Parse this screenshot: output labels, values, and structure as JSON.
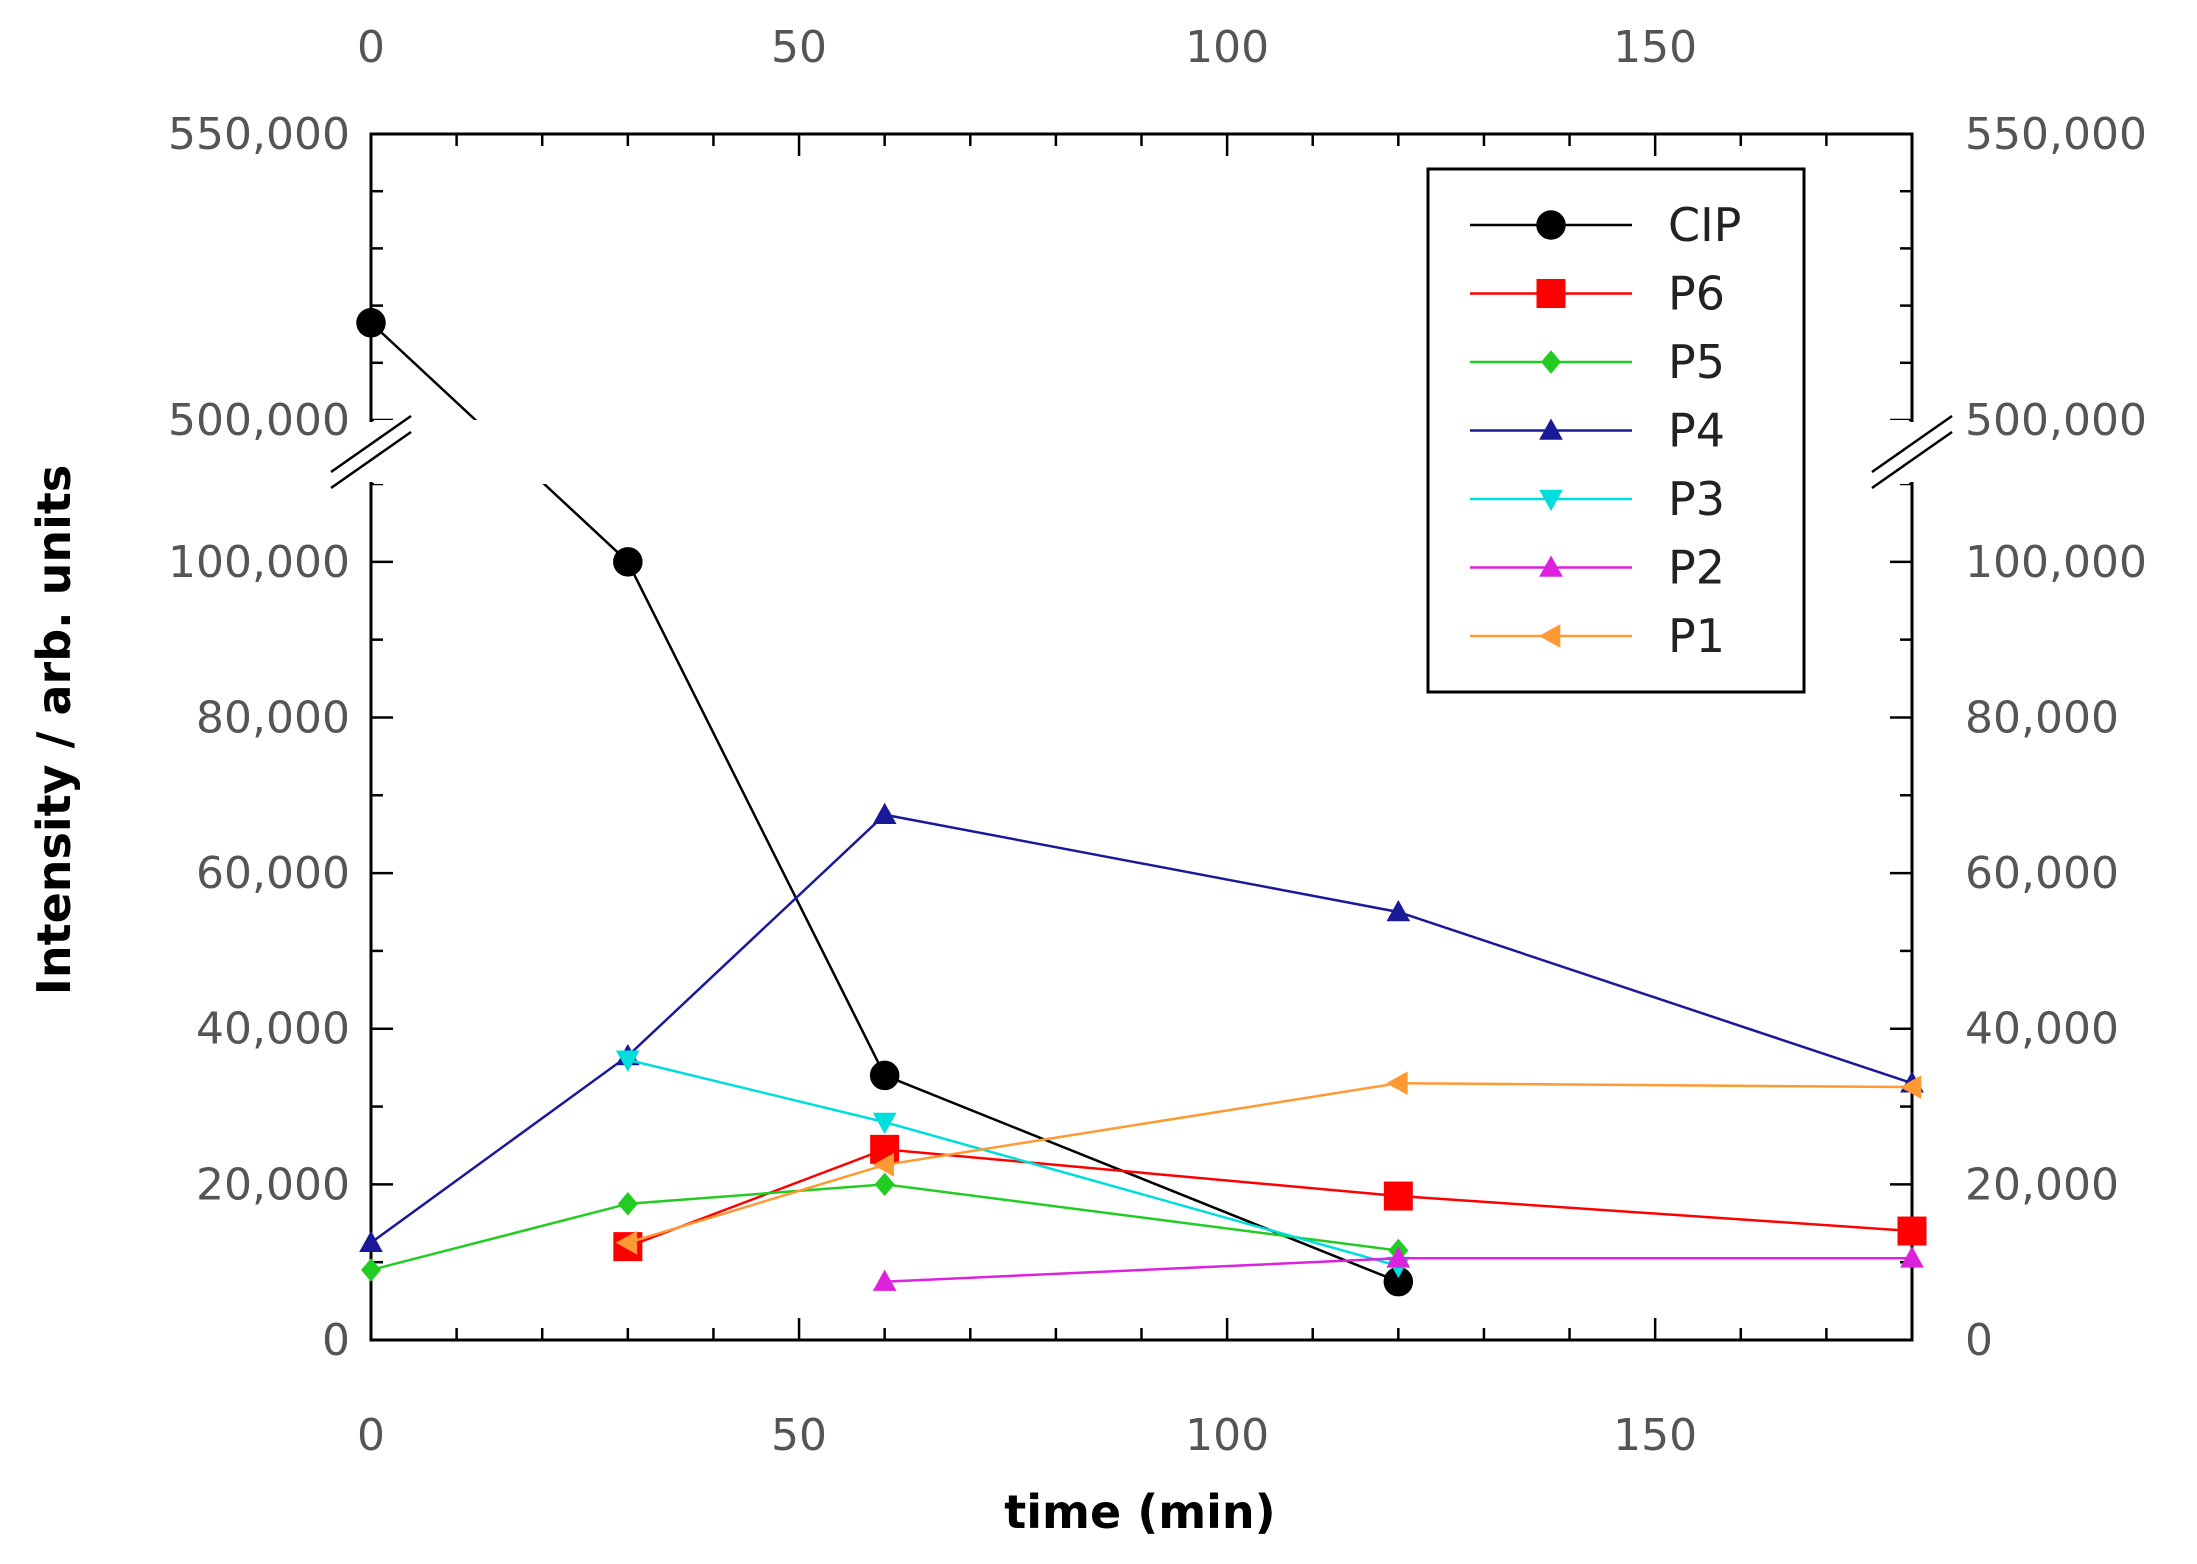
{
  "chart_data": {
    "type": "line",
    "xlabel": "time (min)",
    "ylabel": "Intensity / arb. units",
    "xlim": [
      0,
      180
    ],
    "x_ticks": [
      0,
      50,
      100,
      150
    ],
    "x_tick_labels": [
      "0",
      "50",
      "100",
      "150"
    ],
    "ylim_lower": [
      0,
      110000
    ],
    "ylim_upper": [
      500000,
      550000
    ],
    "axis_break": true,
    "y_ticks_lower": [
      0,
      20000,
      40000,
      60000,
      80000,
      100000
    ],
    "y_tick_labels_lower": [
      "0",
      "20,000",
      "40,000",
      "60,000",
      "80,000",
      "100,000"
    ],
    "y_ticks_upper": [
      500000,
      550000
    ],
    "y_tick_labels_upper": [
      "500,000",
      "550,000"
    ],
    "legend_position": "top-right",
    "series": [
      {
        "name": "CIP",
        "color": "#000000",
        "marker": "circle",
        "x": [
          0,
          30,
          60,
          120
        ],
        "y": [
          517000,
          100000,
          34000,
          7500
        ]
      },
      {
        "name": "P6",
        "color": "#ff0000",
        "marker": "square",
        "x": [
          30,
          60,
          120,
          180
        ],
        "y": [
          12000,
          24500,
          18500,
          14000
        ]
      },
      {
        "name": "P5",
        "color": "#22cc22",
        "marker": "diamond",
        "x": [
          0,
          30,
          60,
          120
        ],
        "y": [
          9000,
          17500,
          20000,
          11500
        ]
      },
      {
        "name": "P4",
        "color": "#1a1a99",
        "marker": "triangle-up",
        "x": [
          0,
          30,
          60,
          120,
          180
        ],
        "y": [
          12500,
          36500,
          67500,
          55000,
          33000
        ]
      },
      {
        "name": "P3",
        "color": "#00dddd",
        "marker": "triangle-down",
        "x": [
          30,
          60,
          120
        ],
        "y": [
          36000,
          28000,
          9500
        ]
      },
      {
        "name": "P2",
        "color": "#dd22dd",
        "marker": "triangle-up",
        "x": [
          60,
          120,
          180
        ],
        "y": [
          7500,
          10500,
          10500
        ]
      },
      {
        "name": "P1",
        "color": "#ff9933",
        "marker": "triangle-left",
        "x": [
          30,
          60,
          120,
          180
        ],
        "y": [
          12500,
          22500,
          33000,
          32500
        ]
      }
    ]
  }
}
